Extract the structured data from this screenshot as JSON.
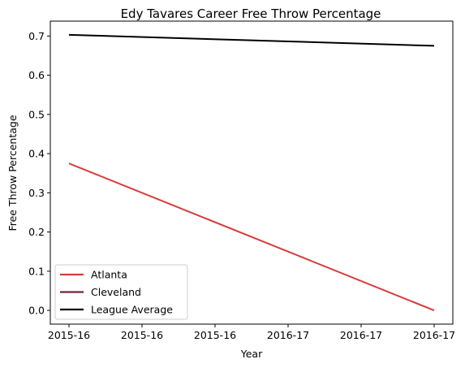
{
  "chart_data": {
    "type": "line",
    "title": "Edy Tavares Career Free Throw Percentage",
    "xlabel": "Year",
    "ylabel": "Free Throw Percentage",
    "x_tick_labels": [
      "2015-16",
      "2015-16",
      "2015-16",
      "2016-17",
      "2016-17",
      "2016-17"
    ],
    "x_range": [
      0,
      1
    ],
    "y_ticks": [
      "0.0",
      "0.1",
      "0.2",
      "0.3",
      "0.4",
      "0.5",
      "0.6",
      "0.7"
    ],
    "ylim": [
      -0.035,
      0.738
    ],
    "grid": false,
    "legend_position": "lower-left",
    "series": [
      {
        "name": "Atlanta",
        "color": "#d93b3b",
        "points": [
          [
            0,
            0.375
          ],
          [
            1,
            0.0
          ]
        ]
      },
      {
        "name": "Cleveland",
        "color": "#6f263d",
        "points": []
      },
      {
        "name": "League Average",
        "color": "#000000",
        "points": [
          [
            0,
            0.703
          ],
          [
            1,
            0.675
          ]
        ]
      }
    ]
  }
}
